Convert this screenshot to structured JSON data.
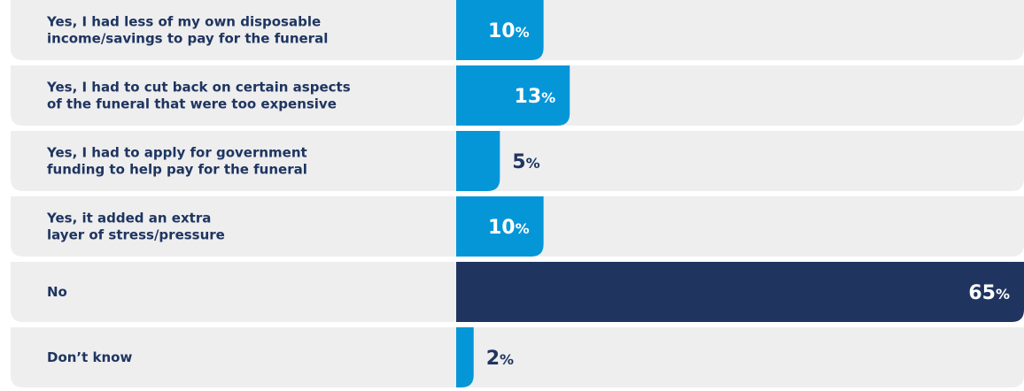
{
  "chart_data": {
    "type": "bar",
    "orientation": "horizontal",
    "categories": [
      [
        "Yes, I had less of my own disposable",
        "income/savings to pay for the funeral"
      ],
      [
        "Yes, I had to cut back on certain aspects",
        "of the funeral that were too expensive"
      ],
      [
        "Yes, I had to apply for government",
        "funding to help pay for the funeral"
      ],
      [
        "Yes, it added an extra",
        "layer of stress/pressure"
      ],
      [
        "No"
      ],
      [
        "Don’t know"
      ]
    ],
    "values": [
      10,
      13,
      5,
      10,
      65,
      2
    ],
    "value_suffix": "%",
    "xlim": [
      0,
      65
    ],
    "grid": false,
    "legend": "none",
    "colors": {
      "bar": "#0596d8",
      "highlight_bar": "#1f3560",
      "row_background": "#eeeeef",
      "label_text": "#1f3560",
      "value_on_bar": "#ffffff",
      "value_outside": "#1f3560"
    },
    "highlight_index": 4
  }
}
